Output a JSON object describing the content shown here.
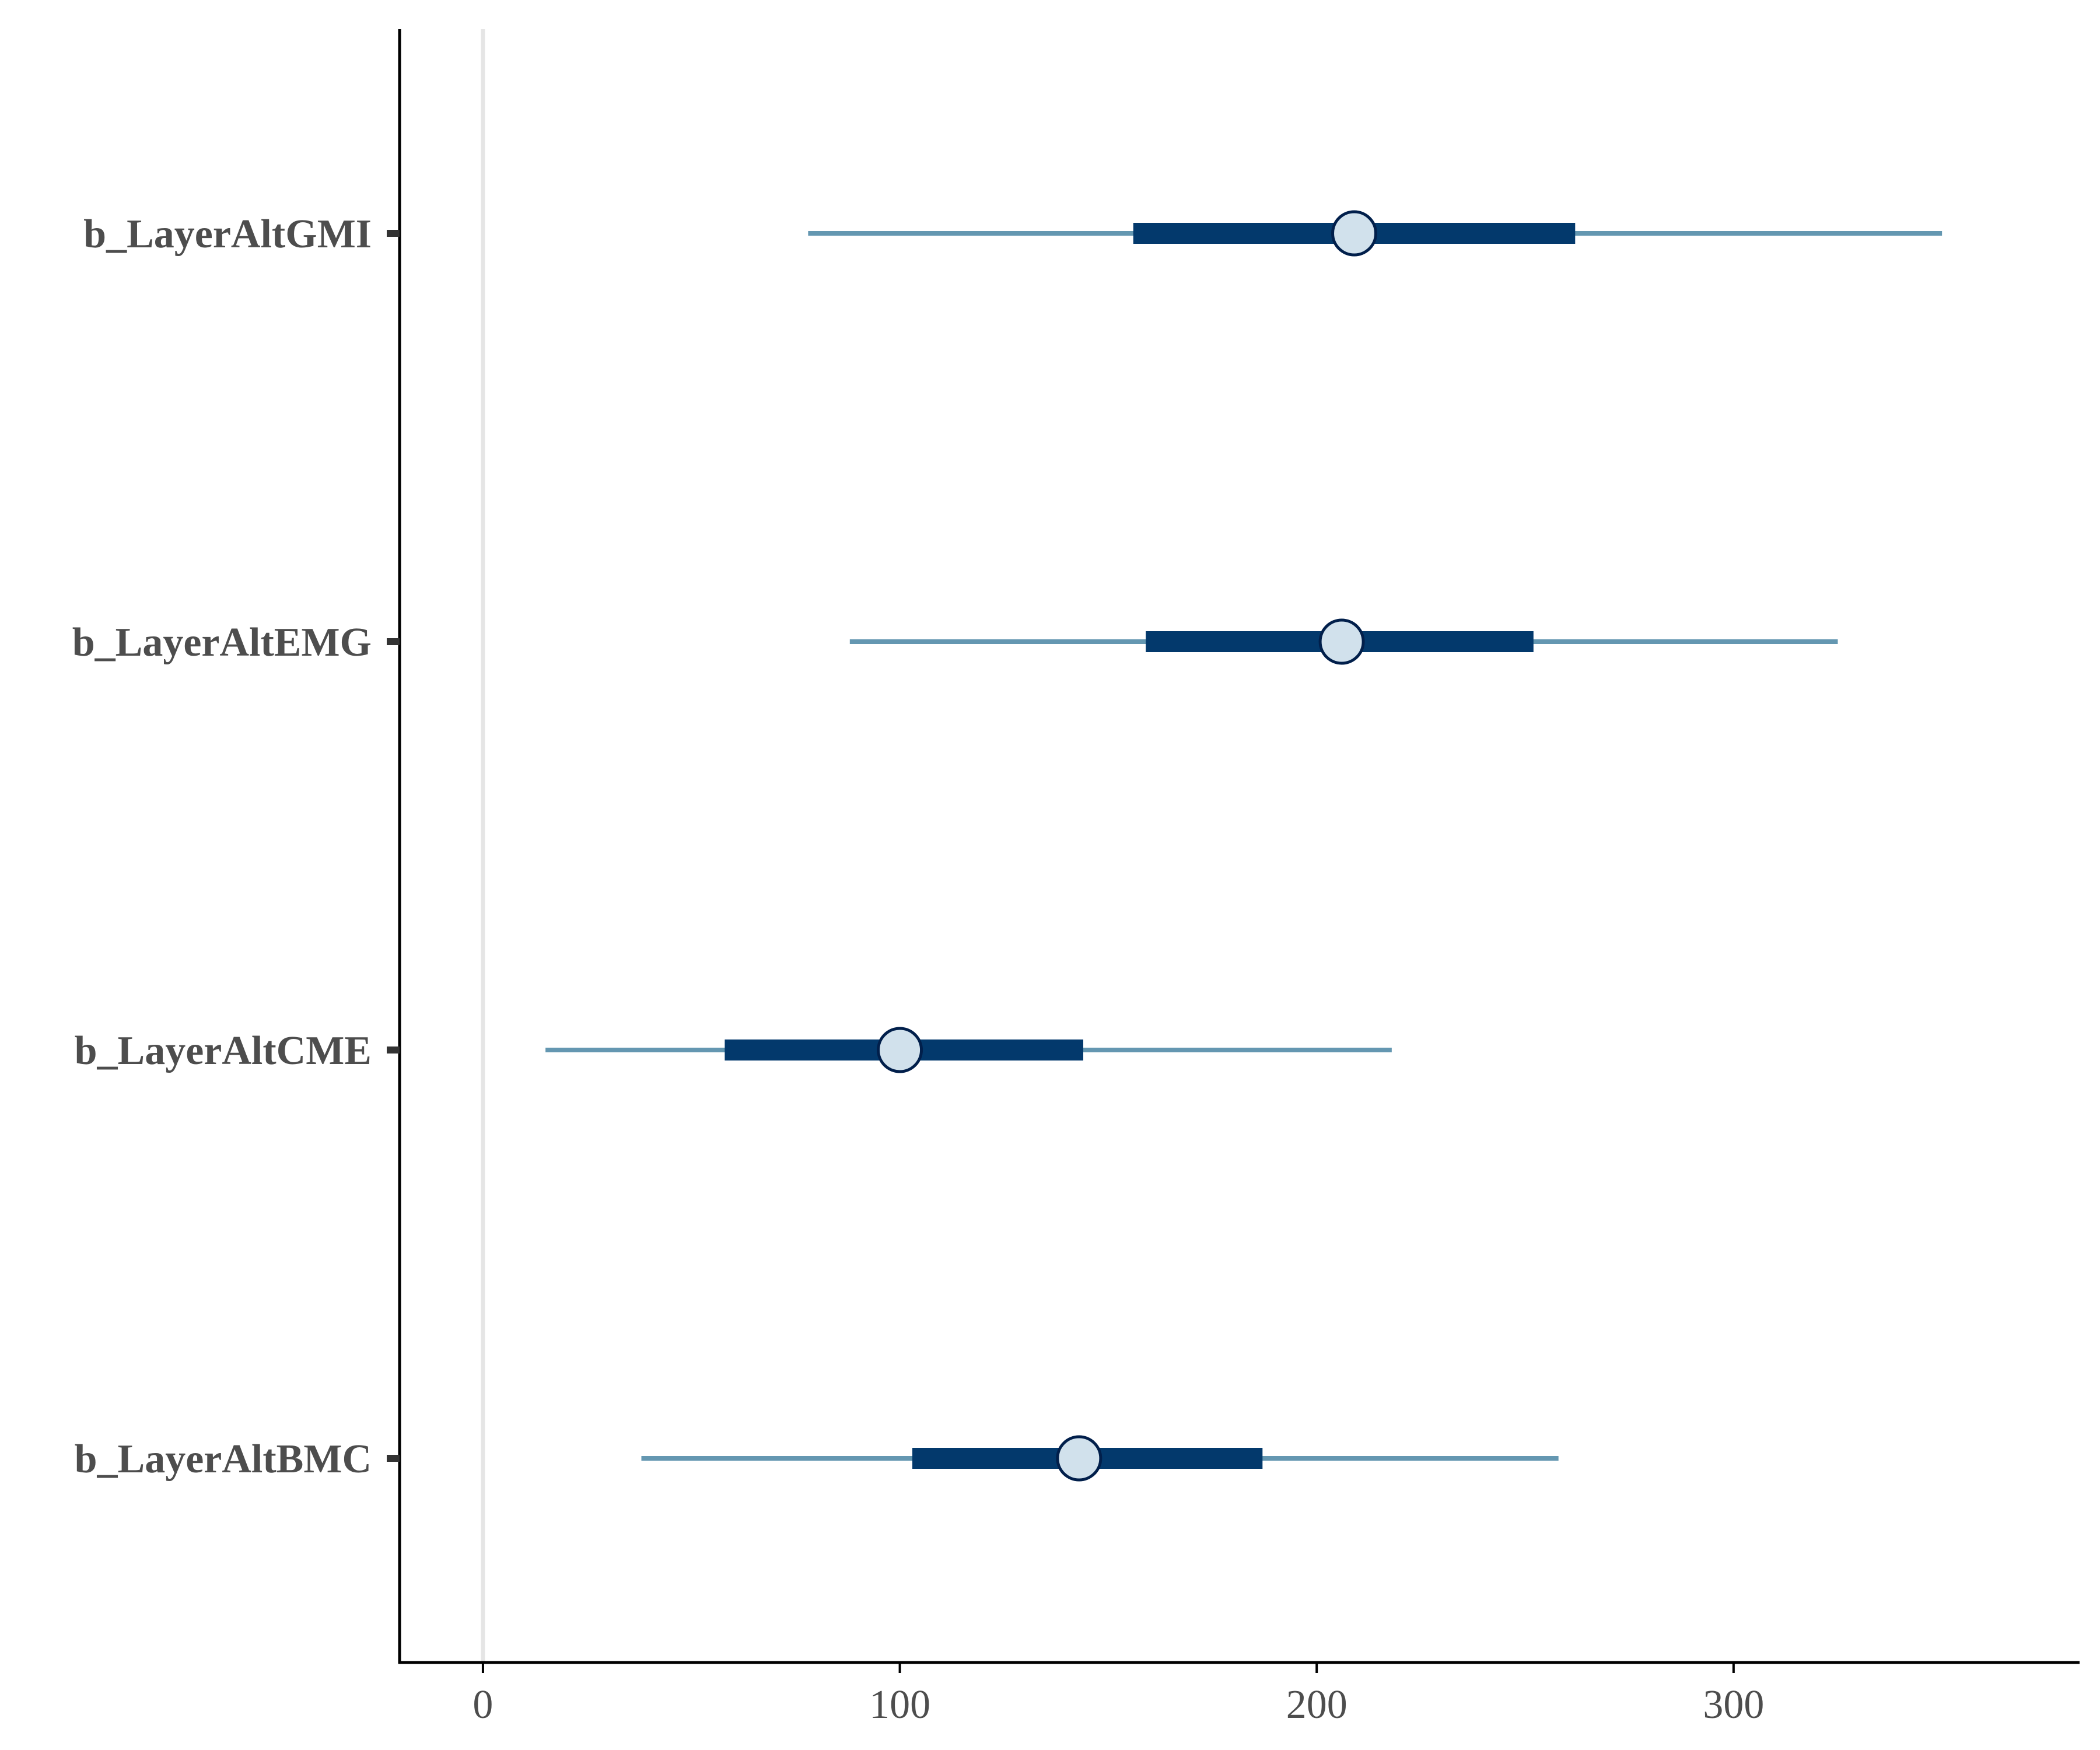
{
  "chart_data": {
    "type": "interval",
    "title": "",
    "xlabel": "",
    "ylabel": "",
    "xlim": [
      -20,
      383
    ],
    "x_ticks": [
      0,
      100,
      200,
      300
    ],
    "x_tick_labels": [
      "0",
      "100",
      "200",
      "300"
    ],
    "reference_line_x": 0,
    "grid": false,
    "parameters": [
      {
        "label": "b_LayerAltGMI",
        "point": 209,
        "inner": [
          156,
          262
        ],
        "outer": [
          78,
          350
        ]
      },
      {
        "label": "b_LayerAltEMG",
        "point": 206,
        "inner": [
          159,
          252
        ],
        "outer": [
          88,
          325
        ]
      },
      {
        "label": "b_LayerAltCME",
        "point": 100,
        "inner": [
          58,
          144
        ],
        "outer": [
          15,
          218
        ]
      },
      {
        "label": "b_LayerAltBMC",
        "point": 143,
        "inner": [
          103,
          187
        ],
        "outer": [
          38,
          258
        ]
      }
    ],
    "colors": {
      "outer_interval": "#6497b1",
      "inner_interval": "#03396c",
      "point_fill": "#d1e1ec",
      "point_stroke": "#011f4b",
      "reference_line": "#e5e5e5",
      "axis": "#000000",
      "text": "#4d4d4d"
    }
  }
}
